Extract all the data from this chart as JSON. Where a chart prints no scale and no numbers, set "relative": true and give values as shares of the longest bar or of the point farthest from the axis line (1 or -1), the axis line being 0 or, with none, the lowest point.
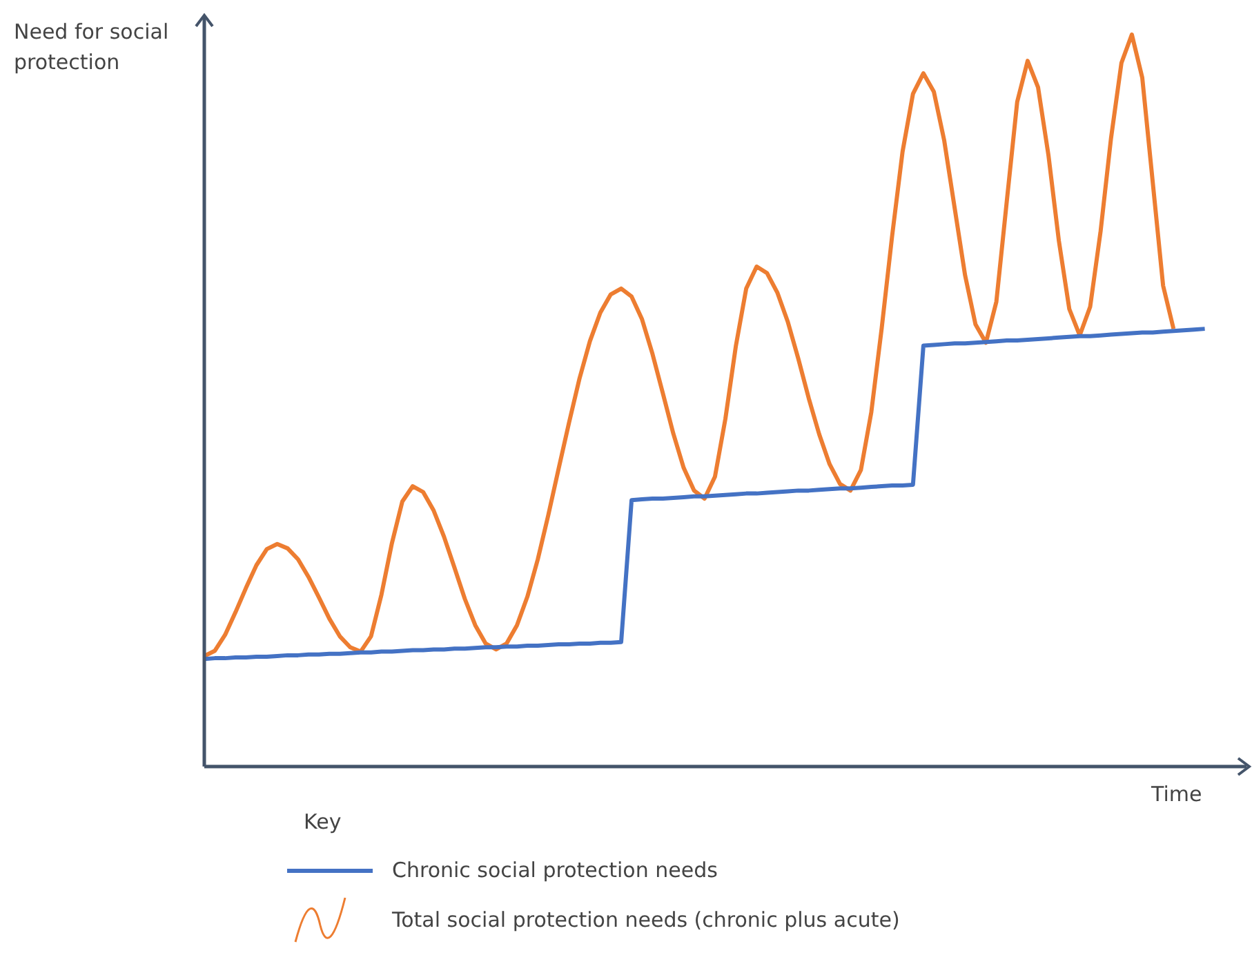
{
  "chart_data": {
    "type": "line",
    "relative": true,
    "ylabel": "Need for social protection",
    "xlabel": "Time",
    "legend_title": "Key",
    "legend": "bottom",
    "tick_labels": false,
    "marker": "none",
    "line_style": "solid",
    "categories": [
      null,
      null,
      null,
      null,
      null,
      null,
      null,
      null,
      null,
      null,
      null,
      null,
      null,
      null,
      null,
      null,
      null,
      null,
      null,
      null,
      null,
      null,
      null,
      null,
      null,
      null,
      null,
      null,
      null,
      null,
      null,
      null,
      null,
      null,
      null,
      null,
      null,
      null,
      null,
      null,
      null,
      null,
      null,
      null,
      null,
      null,
      null,
      null,
      null,
      null,
      null,
      null,
      null,
      null,
      null,
      null,
      null,
      null,
      null,
      null,
      null,
      null,
      null,
      null,
      null,
      null,
      null,
      null,
      null,
      null,
      null,
      null,
      null,
      null,
      null,
      null,
      null,
      null,
      null,
      null,
      null,
      null,
      null,
      null,
      null,
      null,
      null,
      null,
      null,
      null,
      null,
      null,
      null,
      null,
      null,
      null,
      null,
      null,
      null,
      null,
      null
    ],
    "series": [
      {
        "name": "Chronic social protection needs",
        "color": "#4472c4",
        "values": [
          0.147,
          0.148,
          0.148,
          0.149,
          0.149,
          0.15,
          0.15,
          0.151,
          0.152,
          0.152,
          0.153,
          0.153,
          0.154,
          0.154,
          0.155,
          0.156,
          0.156,
          0.157,
          0.157,
          0.158,
          0.159,
          0.159,
          0.16,
          0.16,
          0.161,
          0.161,
          0.162,
          0.163,
          0.163,
          0.164,
          0.164,
          0.165,
          0.165,
          0.166,
          0.167,
          0.167,
          0.168,
          0.168,
          0.169,
          0.169,
          0.17,
          0.364,
          0.365,
          0.366,
          0.366,
          0.367,
          0.368,
          0.369,
          0.369,
          0.37,
          0.371,
          0.372,
          0.373,
          0.373,
          0.374,
          0.375,
          0.376,
          0.377,
          0.377,
          0.378,
          0.379,
          0.38,
          0.38,
          0.381,
          0.382,
          0.383,
          0.384,
          0.384,
          0.385,
          0.575,
          0.576,
          0.577,
          0.578,
          0.578,
          0.579,
          0.58,
          0.581,
          0.582,
          0.582,
          0.583,
          0.584,
          0.585,
          0.586,
          0.587,
          0.588,
          0.588,
          0.589,
          0.59,
          0.591,
          0.592,
          0.593,
          0.593,
          0.594,
          0.595,
          0.596,
          0.597,
          0.598,
          null,
          null,
          null,
          null
        ]
      },
      {
        "name": "Total social protection needs (chronic plus acute)",
        "color": "#ed7d31",
        "values": [
          0.151,
          0.158,
          0.18,
          0.211,
          0.244,
          0.275,
          0.297,
          0.304,
          0.298,
          0.283,
          0.259,
          0.231,
          0.202,
          0.178,
          0.163,
          0.157,
          0.178,
          0.235,
          0.305,
          0.362,
          0.383,
          0.375,
          0.35,
          0.314,
          0.272,
          0.229,
          0.193,
          0.168,
          0.16,
          0.168,
          0.193,
          0.232,
          0.283,
          0.343,
          0.407,
          0.47,
          0.53,
          0.581,
          0.62,
          0.645,
          0.653,
          0.642,
          0.611,
          0.564,
          0.51,
          0.455,
          0.408,
          0.377,
          0.366,
          0.396,
          0.475,
          0.574,
          0.653,
          0.683,
          0.674,
          0.647,
          0.607,
          0.557,
          0.503,
          0.454,
          0.413,
          0.386,
          0.377,
          0.405,
          0.484,
          0.599,
          0.725,
          0.84,
          0.919,
          0.947,
          0.922,
          0.855,
          0.763,
          0.671,
          0.604,
          0.579,
          0.635,
          0.772,
          0.908,
          0.964,
          0.928,
          0.835,
          0.718,
          0.625,
          0.589,
          0.628,
          0.731,
          0.858,
          0.961,
          1.0,
          0.941,
          0.799,
          0.657,
          0.598,
          null,
          null,
          null,
          null,
          null,
          null,
          null
        ]
      }
    ]
  }
}
